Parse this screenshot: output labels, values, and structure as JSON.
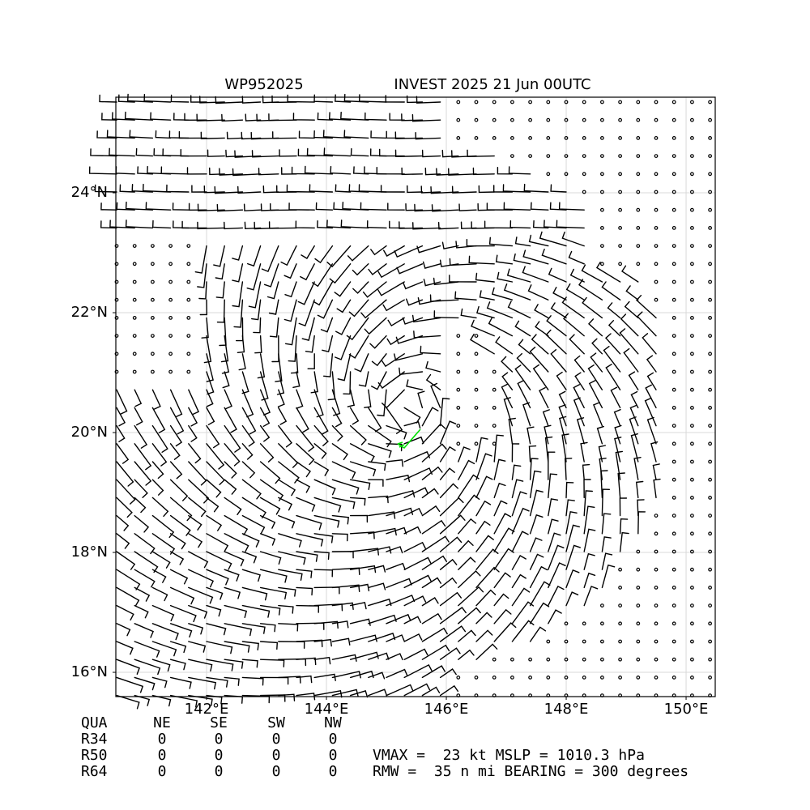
{
  "map": {
    "title_left": "WP952025",
    "title_right": "INVEST 2025 21 Jun 00UTC",
    "xlim": [
      140.486,
      150.486
    ],
    "ylim": [
      15.595,
      25.595
    ],
    "xticks": [
      {
        "value": 142,
        "label": "142°E"
      },
      {
        "value": 144,
        "label": "144°E"
      },
      {
        "value": 146,
        "label": "146°E"
      },
      {
        "value": 148,
        "label": "148°E"
      },
      {
        "value": 150,
        "label": "150°E"
      }
    ],
    "yticks": [
      {
        "value": 16,
        "label": "16°N"
      },
      {
        "value": 18,
        "label": "18°N"
      },
      {
        "value": 20,
        "label": "20°N"
      },
      {
        "value": 22,
        "label": "22°N"
      },
      {
        "value": 24,
        "label": "24°N"
      }
    ],
    "grid": true
  },
  "table": {
    "header": [
      "QUA",
      "NE",
      "SE",
      "SW",
      "NW"
    ],
    "rows": [
      [
        "R34",
        "0",
        "0",
        "0",
        "0"
      ],
      [
        "R50",
        "0",
        "0",
        "0",
        "0"
      ],
      [
        "R64",
        "0",
        "0",
        "0",
        "0"
      ]
    ]
  },
  "summary": [
    "VMAX =  23 kt MSLP = 1010.3 hPa",
    "RMW =  35 n mi BEARING = 300 degrees"
  ]
}
